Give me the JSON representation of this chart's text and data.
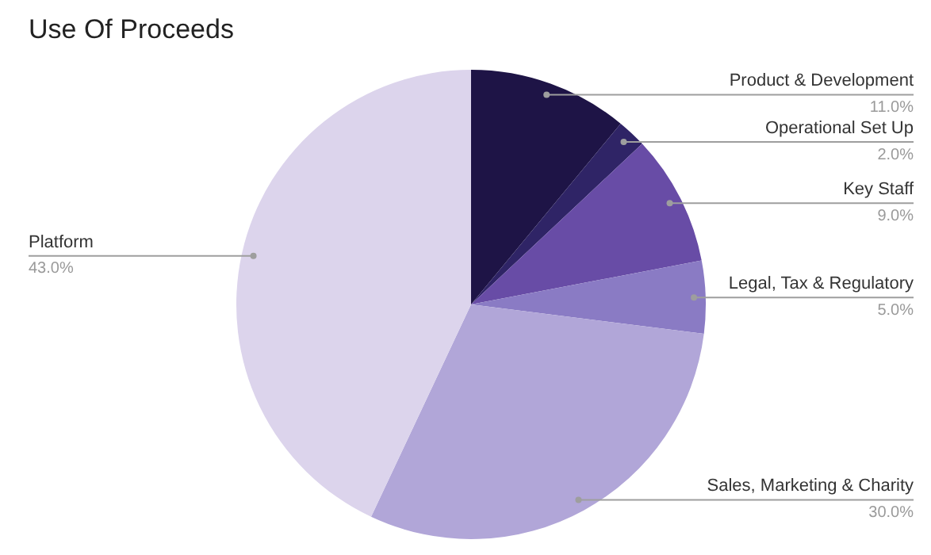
{
  "chart_data": {
    "type": "pie",
    "title": "Use Of Proceeds",
    "categories": [
      "Product & Development",
      "Operational Set Up",
      "Key Staff",
      "Legal, Tax & Regulatory",
      "Sales, Marketing & Charity",
      "Platform"
    ],
    "values": [
      11,
      2,
      9,
      5,
      30,
      43
    ],
    "value_labels": [
      "11.0%",
      "2.0%",
      "9.0%",
      "5.0%",
      "30.0%",
      "43.0%"
    ],
    "colors": [
      "#1e1446",
      "#2f2466",
      "#684ca6",
      "#8a7bc4",
      "#b1a6d8",
      "#dcd4ec"
    ],
    "legend": false
  }
}
